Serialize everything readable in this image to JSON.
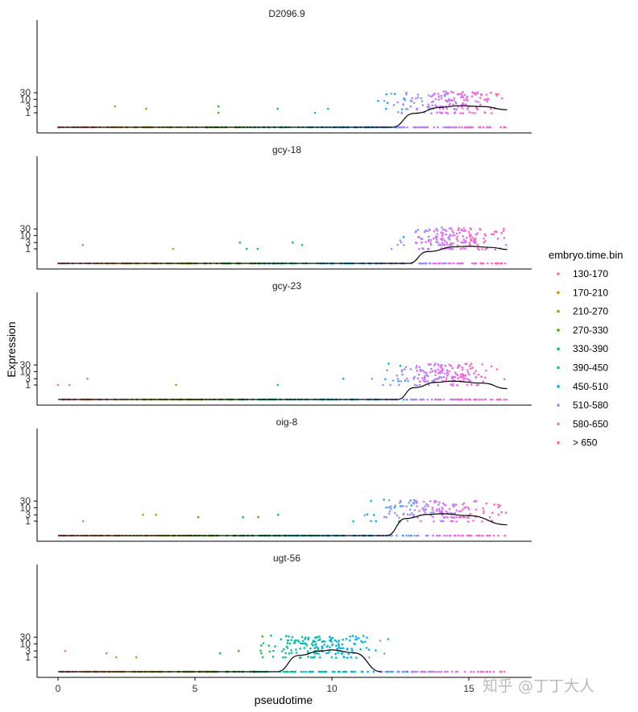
{
  "chart_data": {
    "type": "scatter",
    "facets": [
      "D2096.9",
      "gcy-18",
      "gcy-23",
      "oig-8",
      "ugt-56"
    ],
    "xlabel": "pseudotime",
    "ylabel": "Expression",
    "x_ticks": [
      0,
      5,
      10,
      15
    ],
    "xlim": [
      -0.8,
      17.2
    ],
    "y_scale": "log10(y+0.1)",
    "y_ticks": [
      1,
      3,
      10,
      30
    ],
    "legend": {
      "title": "embryo.time.bin",
      "placement": "right",
      "items": [
        {
          "label": "130-170",
          "color": "#F8766D"
        },
        {
          "label": "170-210",
          "color": "#D89000"
        },
        {
          "label": "210-270",
          "color": "#A3A500"
        },
        {
          "label": "270-330",
          "color": "#39B600"
        },
        {
          "label": "330-390",
          "color": "#00BF7D"
        },
        {
          "label": "390-450",
          "color": "#00BFC4"
        },
        {
          "label": "450-510",
          "color": "#00B0F6"
        },
        {
          "label": "510-580",
          "color": "#9590FF"
        },
        {
          "label": "580-650",
          "color": "#E76BF3"
        },
        {
          "label": "> 650",
          "color": "#FF62BC"
        }
      ]
    },
    "fit_curves": [
      {
        "facet": "D2096.9",
        "x": [
          12.2,
          13,
          14,
          14.6,
          15.5,
          16.4
        ],
        "y": [
          0,
          0.9,
          2.6,
          3.4,
          3.0,
          1.7
        ]
      },
      {
        "facet": "gcy-18",
        "x": [
          12.8,
          13.5,
          14.5,
          15,
          15.8,
          16.4
        ],
        "y": [
          0,
          0.6,
          1.45,
          1.6,
          1.3,
          0.9
        ]
      },
      {
        "facet": "gcy-23",
        "x": [
          12.4,
          13,
          13.8,
          14.4,
          15.5,
          16.4
        ],
        "y": [
          0,
          0.6,
          1.6,
          2.0,
          1.4,
          0.5
        ]
      },
      {
        "facet": "oig-8",
        "x": [
          12,
          12.7,
          13.5,
          14,
          15,
          16.4
        ],
        "y": [
          0,
          1.6,
          3.2,
          3.6,
          2.6,
          0.5
        ]
      },
      {
        "facet": "ugt-56",
        "x": [
          8,
          8.8,
          9.6,
          10,
          10.8,
          11.8
        ],
        "y": [
          0,
          1.4,
          3.0,
          3.6,
          2.2,
          0
        ]
      }
    ]
  },
  "watermark": "知乎 @丁丁大人"
}
